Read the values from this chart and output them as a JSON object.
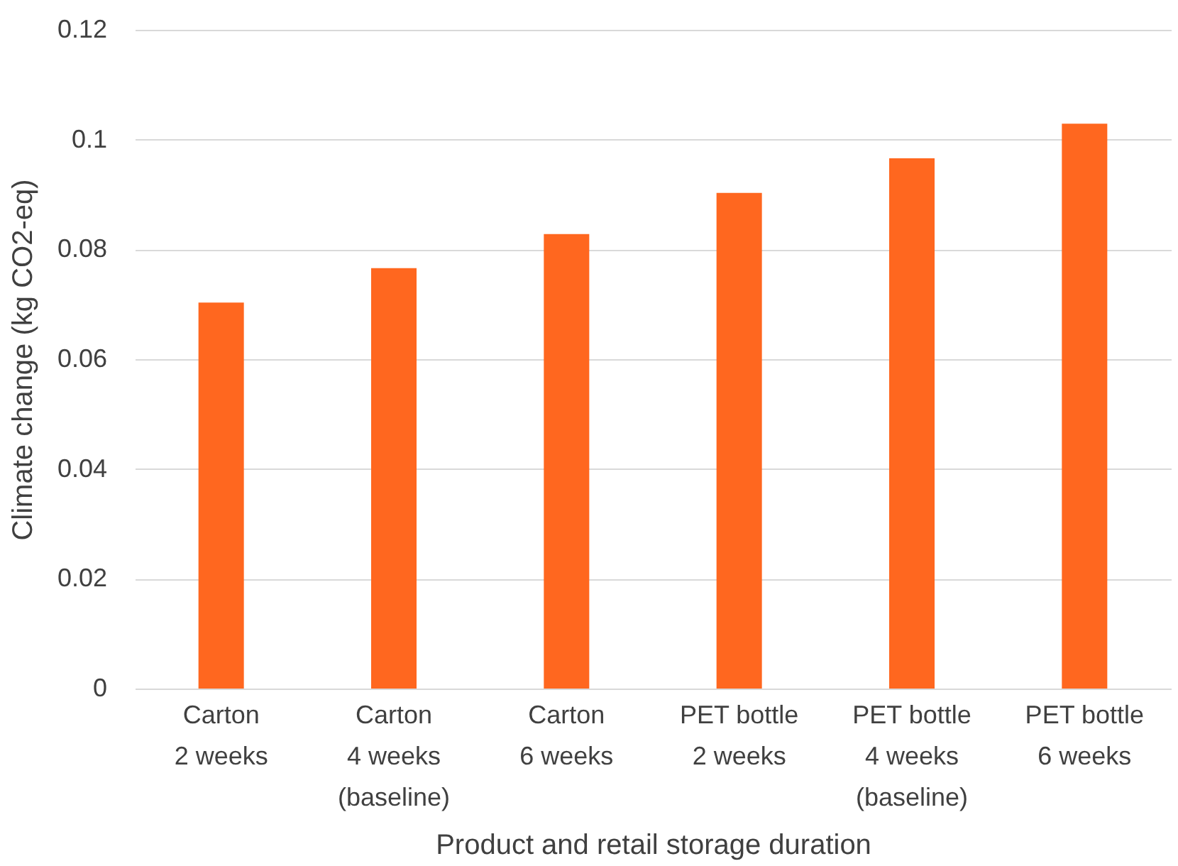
{
  "chart_data": {
    "type": "bar",
    "xlabel": "Product and retail storage duration",
    "ylabel": "Climate change (kg CO2-eq)",
    "categories": [
      "Carton\n2 weeks",
      "Carton\n4 weeks\n(baseline)",
      "Carton\n6 weeks",
      "PET bottle\n2 weeks",
      "PET bottle\n4 weeks\n(baseline)",
      "PET bottle\n6 weeks"
    ],
    "values": [
      0.0703,
      0.0766,
      0.0828,
      0.0903,
      0.0966,
      0.1029
    ],
    "color": "#ff671f",
    "ylim": [
      0,
      0.12
    ],
    "yticks": [
      0,
      0.02,
      0.04,
      0.06,
      0.08,
      0.1,
      0.12
    ],
    "grid": "y"
  }
}
